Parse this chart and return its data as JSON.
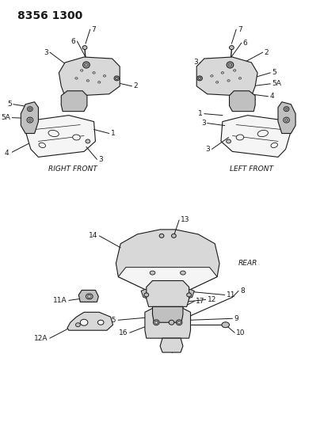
{
  "title": "8356 1300",
  "background_color": "#ffffff",
  "line_color": "#1a1a1a",
  "text_color": "#1a1a1a",
  "title_fontsize": 10,
  "label_fontsize": 6.5,
  "right_front_label": "RIGHT FRONT",
  "left_front_label": "LEFT FRONT",
  "rear_label": "REAR",
  "figsize": [
    4.1,
    5.33
  ],
  "dpi": 100,
  "fill_light": "#d8d8d8",
  "fill_mid": "#c0c0c0",
  "fill_dark": "#a0a0a0",
  "fill_white": "#f5f5f5"
}
